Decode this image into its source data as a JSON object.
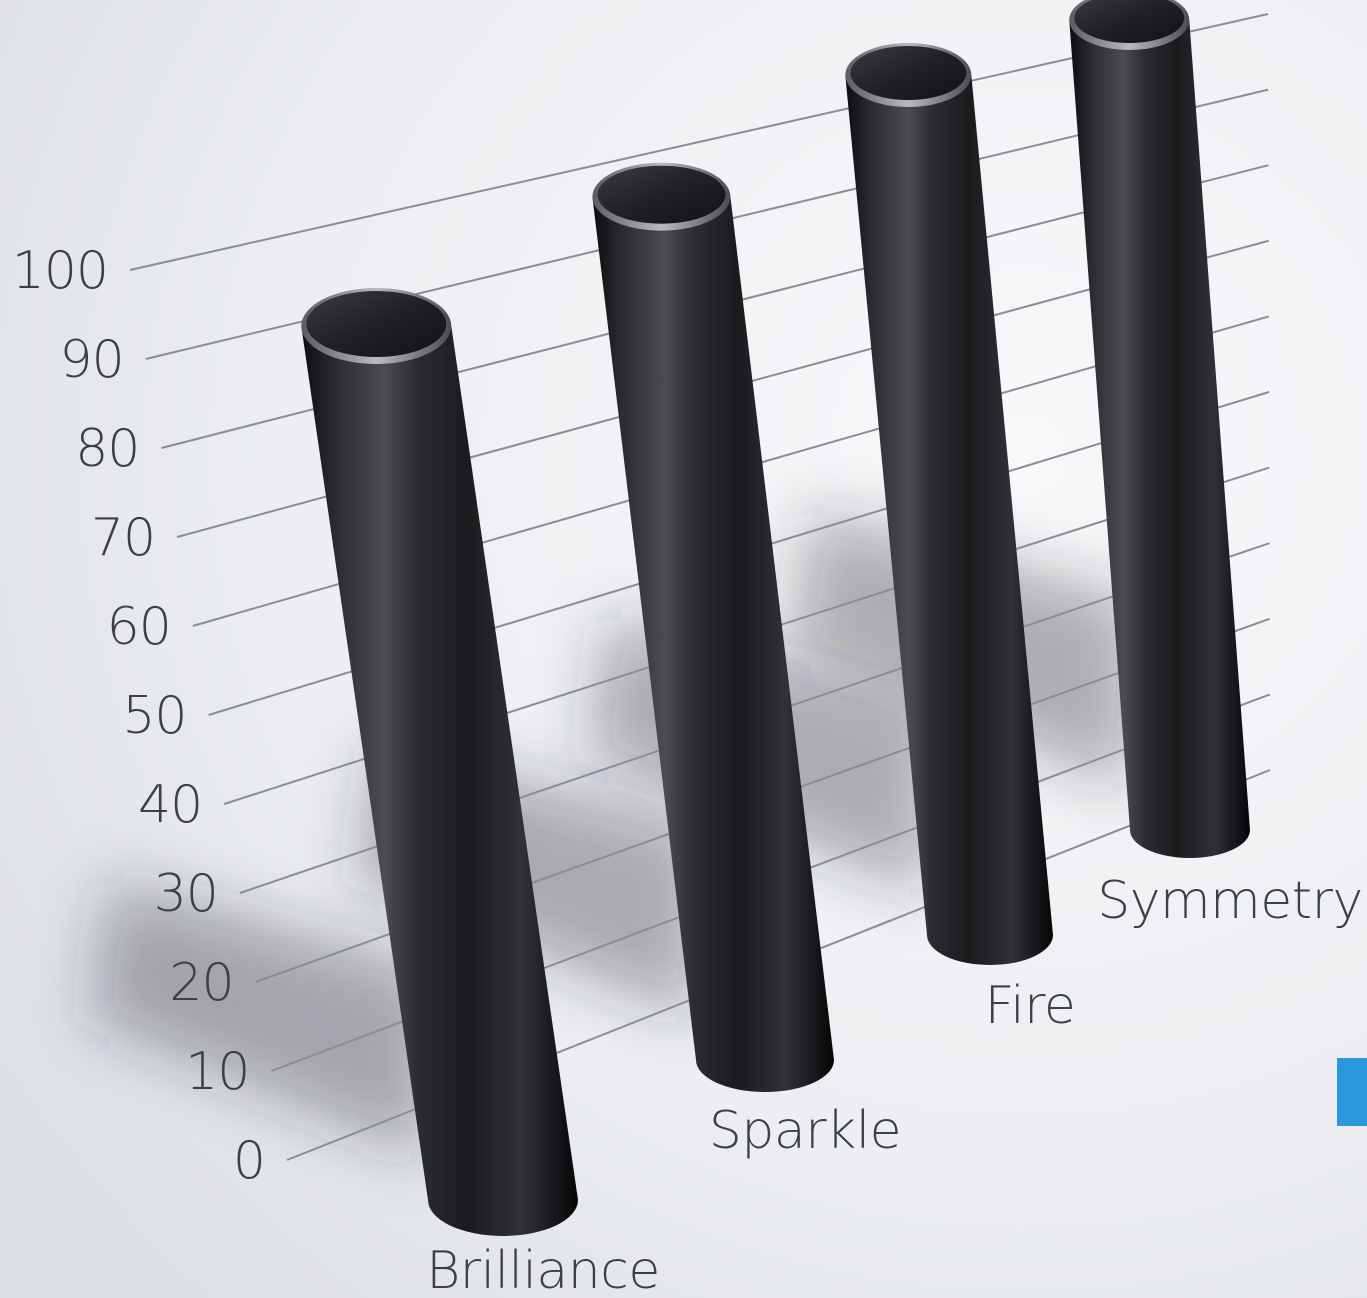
{
  "chart_data": {
    "type": "bar",
    "style": "3d-cylinder",
    "categories": [
      "Brilliance",
      "Sparkle",
      "Fire",
      "Symmetry"
    ],
    "values": [
      95,
      97,
      100,
      100
    ],
    "yticks": [
      "0",
      "10",
      "20",
      "30",
      "40",
      "50",
      "60",
      "70",
      "80",
      "90",
      "100"
    ],
    "ylim": [
      0,
      100
    ],
    "grid": true,
    "legend": "none",
    "colors": {
      "background": "#eef0f3",
      "bar": "#1e1f22",
      "grid": "#8a8d92",
      "text": "#3c3f46",
      "accent": "#2b97dc"
    }
  }
}
